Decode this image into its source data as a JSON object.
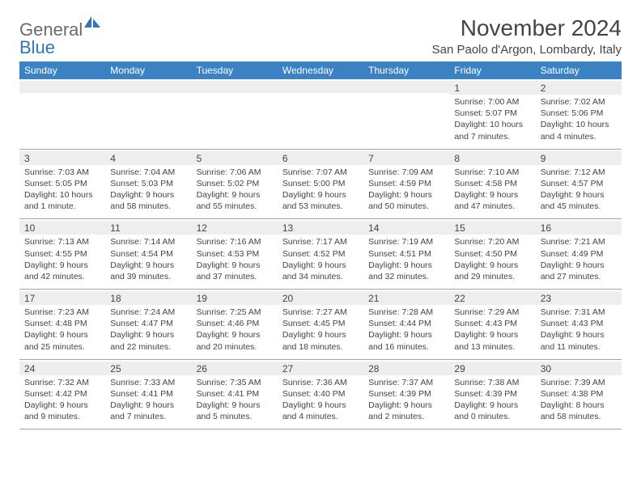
{
  "brand": {
    "word1": "General",
    "word2": "Blue",
    "color_gray": "#6b6b6b",
    "color_blue": "#2a77bb"
  },
  "header": {
    "title": "November 2024",
    "location": "San Paolo d'Argon, Lombardy, Italy"
  },
  "colors": {
    "dow_bg": "#3b82c4",
    "dow_text": "#ffffff",
    "band_bg": "#eeeeee",
    "text": "#444444",
    "rule": "#9aa7b3"
  },
  "daysOfWeek": [
    "Sunday",
    "Monday",
    "Tuesday",
    "Wednesday",
    "Thursday",
    "Friday",
    "Saturday"
  ],
  "weeks": [
    [
      {
        "n": "",
        "sr": "",
        "ss": "",
        "dl": ""
      },
      {
        "n": "",
        "sr": "",
        "ss": "",
        "dl": ""
      },
      {
        "n": "",
        "sr": "",
        "ss": "",
        "dl": ""
      },
      {
        "n": "",
        "sr": "",
        "ss": "",
        "dl": ""
      },
      {
        "n": "",
        "sr": "",
        "ss": "",
        "dl": ""
      },
      {
        "n": "1",
        "sr": "Sunrise: 7:00 AM",
        "ss": "Sunset: 5:07 PM",
        "dl": "Daylight: 10 hours and 7 minutes."
      },
      {
        "n": "2",
        "sr": "Sunrise: 7:02 AM",
        "ss": "Sunset: 5:06 PM",
        "dl": "Daylight: 10 hours and 4 minutes."
      }
    ],
    [
      {
        "n": "3",
        "sr": "Sunrise: 7:03 AM",
        "ss": "Sunset: 5:05 PM",
        "dl": "Daylight: 10 hours and 1 minute."
      },
      {
        "n": "4",
        "sr": "Sunrise: 7:04 AM",
        "ss": "Sunset: 5:03 PM",
        "dl": "Daylight: 9 hours and 58 minutes."
      },
      {
        "n": "5",
        "sr": "Sunrise: 7:06 AM",
        "ss": "Sunset: 5:02 PM",
        "dl": "Daylight: 9 hours and 55 minutes."
      },
      {
        "n": "6",
        "sr": "Sunrise: 7:07 AM",
        "ss": "Sunset: 5:00 PM",
        "dl": "Daylight: 9 hours and 53 minutes."
      },
      {
        "n": "7",
        "sr": "Sunrise: 7:09 AM",
        "ss": "Sunset: 4:59 PM",
        "dl": "Daylight: 9 hours and 50 minutes."
      },
      {
        "n": "8",
        "sr": "Sunrise: 7:10 AM",
        "ss": "Sunset: 4:58 PM",
        "dl": "Daylight: 9 hours and 47 minutes."
      },
      {
        "n": "9",
        "sr": "Sunrise: 7:12 AM",
        "ss": "Sunset: 4:57 PM",
        "dl": "Daylight: 9 hours and 45 minutes."
      }
    ],
    [
      {
        "n": "10",
        "sr": "Sunrise: 7:13 AM",
        "ss": "Sunset: 4:55 PM",
        "dl": "Daylight: 9 hours and 42 minutes."
      },
      {
        "n": "11",
        "sr": "Sunrise: 7:14 AM",
        "ss": "Sunset: 4:54 PM",
        "dl": "Daylight: 9 hours and 39 minutes."
      },
      {
        "n": "12",
        "sr": "Sunrise: 7:16 AM",
        "ss": "Sunset: 4:53 PM",
        "dl": "Daylight: 9 hours and 37 minutes."
      },
      {
        "n": "13",
        "sr": "Sunrise: 7:17 AM",
        "ss": "Sunset: 4:52 PM",
        "dl": "Daylight: 9 hours and 34 minutes."
      },
      {
        "n": "14",
        "sr": "Sunrise: 7:19 AM",
        "ss": "Sunset: 4:51 PM",
        "dl": "Daylight: 9 hours and 32 minutes."
      },
      {
        "n": "15",
        "sr": "Sunrise: 7:20 AM",
        "ss": "Sunset: 4:50 PM",
        "dl": "Daylight: 9 hours and 29 minutes."
      },
      {
        "n": "16",
        "sr": "Sunrise: 7:21 AM",
        "ss": "Sunset: 4:49 PM",
        "dl": "Daylight: 9 hours and 27 minutes."
      }
    ],
    [
      {
        "n": "17",
        "sr": "Sunrise: 7:23 AM",
        "ss": "Sunset: 4:48 PM",
        "dl": "Daylight: 9 hours and 25 minutes."
      },
      {
        "n": "18",
        "sr": "Sunrise: 7:24 AM",
        "ss": "Sunset: 4:47 PM",
        "dl": "Daylight: 9 hours and 22 minutes."
      },
      {
        "n": "19",
        "sr": "Sunrise: 7:25 AM",
        "ss": "Sunset: 4:46 PM",
        "dl": "Daylight: 9 hours and 20 minutes."
      },
      {
        "n": "20",
        "sr": "Sunrise: 7:27 AM",
        "ss": "Sunset: 4:45 PM",
        "dl": "Daylight: 9 hours and 18 minutes."
      },
      {
        "n": "21",
        "sr": "Sunrise: 7:28 AM",
        "ss": "Sunset: 4:44 PM",
        "dl": "Daylight: 9 hours and 16 minutes."
      },
      {
        "n": "22",
        "sr": "Sunrise: 7:29 AM",
        "ss": "Sunset: 4:43 PM",
        "dl": "Daylight: 9 hours and 13 minutes."
      },
      {
        "n": "23",
        "sr": "Sunrise: 7:31 AM",
        "ss": "Sunset: 4:43 PM",
        "dl": "Daylight: 9 hours and 11 minutes."
      }
    ],
    [
      {
        "n": "24",
        "sr": "Sunrise: 7:32 AM",
        "ss": "Sunset: 4:42 PM",
        "dl": "Daylight: 9 hours and 9 minutes."
      },
      {
        "n": "25",
        "sr": "Sunrise: 7:33 AM",
        "ss": "Sunset: 4:41 PM",
        "dl": "Daylight: 9 hours and 7 minutes."
      },
      {
        "n": "26",
        "sr": "Sunrise: 7:35 AM",
        "ss": "Sunset: 4:41 PM",
        "dl": "Daylight: 9 hours and 5 minutes."
      },
      {
        "n": "27",
        "sr": "Sunrise: 7:36 AM",
        "ss": "Sunset: 4:40 PM",
        "dl": "Daylight: 9 hours and 4 minutes."
      },
      {
        "n": "28",
        "sr": "Sunrise: 7:37 AM",
        "ss": "Sunset: 4:39 PM",
        "dl": "Daylight: 9 hours and 2 minutes."
      },
      {
        "n": "29",
        "sr": "Sunrise: 7:38 AM",
        "ss": "Sunset: 4:39 PM",
        "dl": "Daylight: 9 hours and 0 minutes."
      },
      {
        "n": "30",
        "sr": "Sunrise: 7:39 AM",
        "ss": "Sunset: 4:38 PM",
        "dl": "Daylight: 8 hours and 58 minutes."
      }
    ]
  ]
}
